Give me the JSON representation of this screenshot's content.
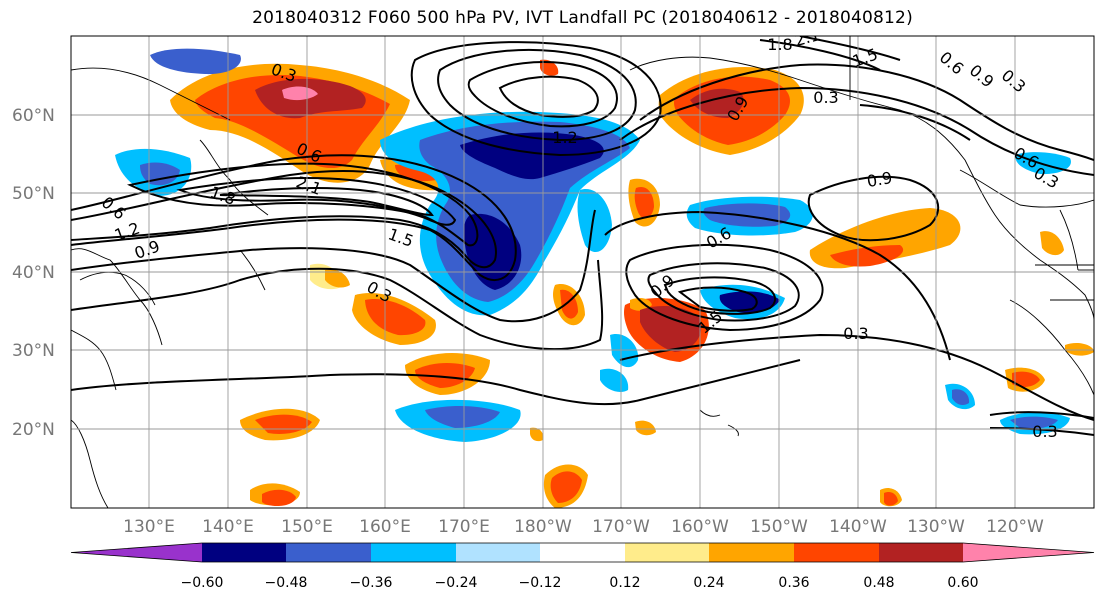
{
  "title": "2018040312 F060 500 hPa PV, IVT Landfall PC (2018040612 - 2018040812)",
  "lat_labels": [
    "60°N",
    "50°N",
    "40°N",
    "30°N",
    "20°N"
  ],
  "lon_labels": [
    "130°E",
    "140°E",
    "150°E",
    "160°E",
    "170°E",
    "180°W",
    "170°W",
    "160°W",
    "150°W",
    "140°W",
    "130°W",
    "120°W"
  ],
  "colorbar": {
    "tick_labels": [
      "−0.60",
      "−0.48",
      "−0.36",
      "−0.24",
      "−0.12",
      "0.12",
      "0.24",
      "0.36",
      "0.48",
      "0.60"
    ],
    "colors": [
      "#9932cc",
      "#000080",
      "#3a5fcd",
      "#00bfff",
      "#b0e2ff",
      "#ffffff",
      "#ffec8b",
      "#ffa500",
      "#ff4500",
      "#b22222",
      "#ff82ab"
    ]
  },
  "contour_labels": [
    {
      "text": "0.3"
    },
    {
      "text": "0.6"
    },
    {
      "text": "2.1"
    },
    {
      "text": "1.8"
    },
    {
      "text": "1.5"
    },
    {
      "text": "1.2"
    },
    {
      "text": "0.9"
    },
    {
      "text": "0.6"
    },
    {
      "text": "0.3"
    },
    {
      "text": "1.2"
    },
    {
      "text": "1.8"
    },
    {
      "text": "2.1"
    },
    {
      "text": "1.5"
    },
    {
      "text": "0.3"
    },
    {
      "text": "0.6"
    },
    {
      "text": "0.9"
    },
    {
      "text": "0.3"
    },
    {
      "text": "0.6"
    },
    {
      "text": "0.3"
    },
    {
      "text": "0.9"
    },
    {
      "text": "0.6"
    },
    {
      "text": "0.9"
    },
    {
      "text": "1.5"
    },
    {
      "text": "0.3"
    },
    {
      "text": "0.3"
    },
    {
      "text": "0.9"
    }
  ]
}
